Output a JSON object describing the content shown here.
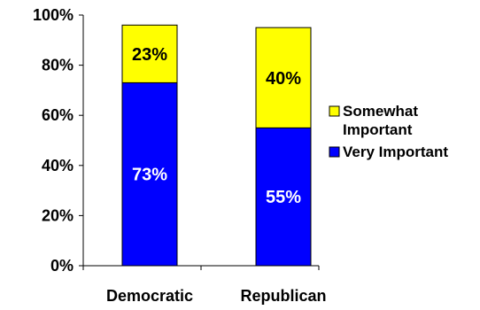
{
  "chart_data": {
    "type": "bar",
    "stacked": true,
    "categories": [
      "Democratic",
      "Republican"
    ],
    "series": [
      {
        "name": "Very Important",
        "values": [
          73,
          55
        ],
        "labels": [
          "73%",
          "55%"
        ],
        "color": "#0000ff",
        "label_color": "#ffffff"
      },
      {
        "name": "Somewhat Important",
        "values": [
          23,
          40
        ],
        "labels": [
          "23%",
          "40%"
        ],
        "color": "#ffff00",
        "label_color": "#000000"
      }
    ],
    "ylim": [
      0,
      100
    ],
    "yticks": [
      "0%",
      "20%",
      "40%",
      "60%",
      "80%",
      "100%"
    ],
    "legend": {
      "position": "right",
      "items": [
        {
          "line1": "Somewhat",
          "line2": "Important",
          "color": "#ffff00"
        },
        {
          "line1": "Very Important",
          "line2": "",
          "color": "#0000ff"
        }
      ]
    },
    "grid": false
  }
}
